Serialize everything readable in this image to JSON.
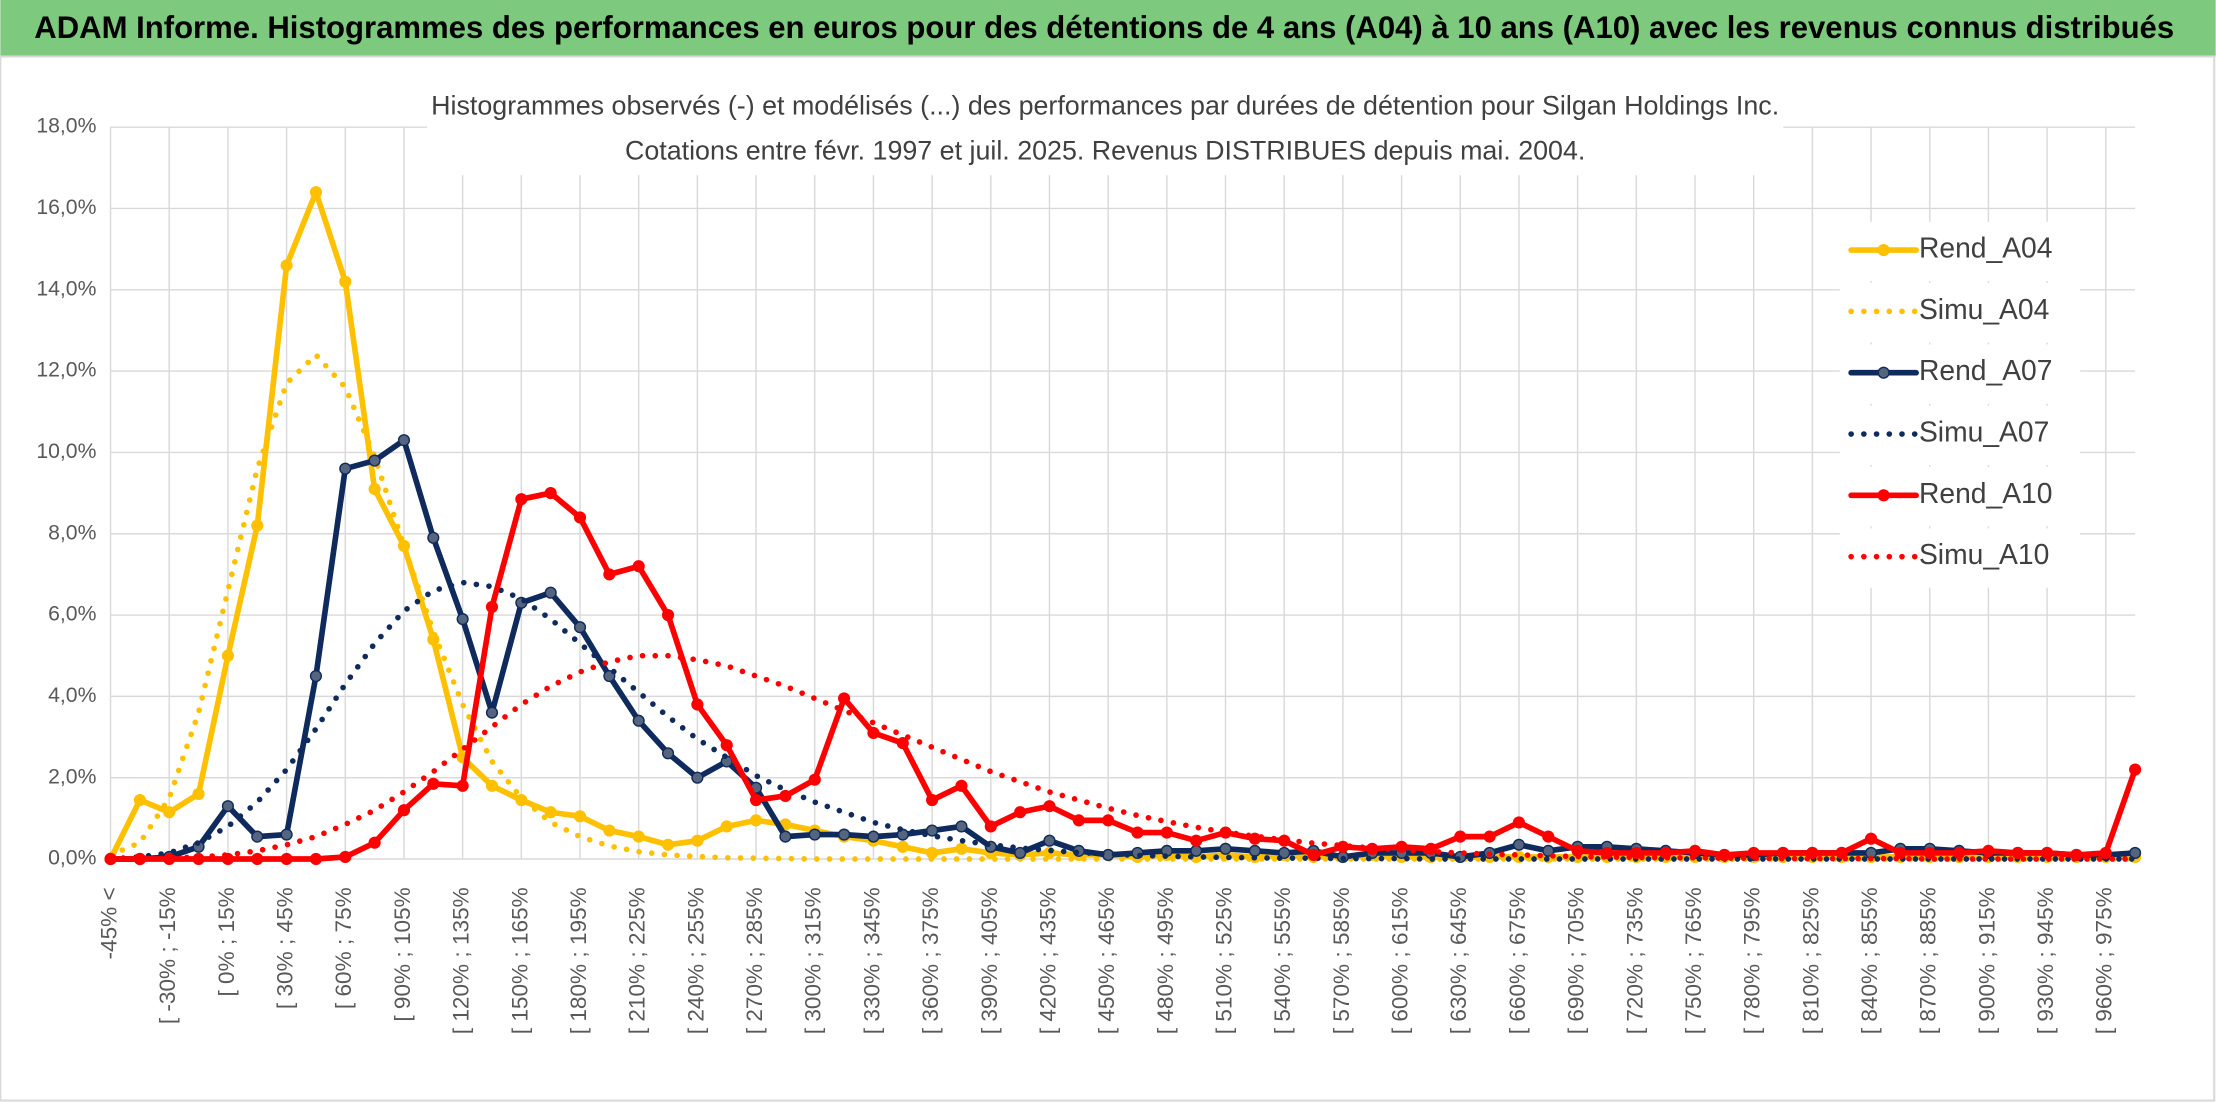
{
  "header": {
    "title": "ADAM Informe. Histogrammes des performances en euros pour des détentions de 4 ans (A04) à 10 ans (A10) avec les revenus connus distribués"
  },
  "chart_data": {
    "type": "line",
    "title": "Histogrammes observés (-) et modélisés (...) des performances par durées de détention pour Silgan Holdings Inc.",
    "subtitle": "Cotations entre févr. 1997 et juil. 2025. Revenus DISTRIBUES depuis mai. 2004.",
    "categories": [
      "-45% <",
      null,
      "[ -30% ; -15%",
      null,
      "[ 0% ; 15%",
      null,
      "[ 30% ; 45%",
      null,
      "[ 60% ; 75%",
      null,
      "[ 90% ; 105%",
      null,
      "[ 120% ; 135%",
      null,
      "[ 150% ; 165%",
      null,
      "[ 180% ; 195%",
      null,
      "[ 210% ; 225%",
      null,
      "[ 240% ; 255%",
      null,
      "[ 270% ; 285%",
      null,
      "[ 300% ; 315%",
      null,
      "[ 330% ; 345%",
      null,
      "[ 360% ; 375%",
      null,
      "[ 390% ; 405%",
      null,
      "[ 420% ; 435%",
      null,
      "[ 450% ; 465%",
      null,
      "[ 480% ; 495%",
      null,
      "[ 510% ; 525%",
      null,
      "[ 540% ; 555%",
      null,
      "[ 570% ; 585%",
      null,
      "[ 600% ; 615%",
      null,
      "[ 630% ; 645%",
      null,
      "[ 660% ; 675%",
      null,
      "[ 690% ; 705%",
      null,
      "[ 720% ; 735%",
      null,
      "[ 750% ; 765%",
      null,
      "[ 780% ; 795%",
      null,
      "[ 810% ; 825%",
      null,
      "[ 840% ; 855%",
      null,
      "[ 870% ; 885%",
      null,
      "[ 900% ; 915%",
      null,
      "[ 930% ; 945%",
      null,
      "[ 960% ; 975%",
      null
    ],
    "series": [
      {
        "name": "Rend_A04",
        "color": "#FFC000",
        "dash": "solid",
        "markers": true,
        "values": [
          0,
          1.45,
          1.15,
          1.6,
          5.0,
          8.2,
          14.6,
          16.4,
          14.2,
          9.1,
          7.7,
          5.4,
          2.5,
          1.8,
          1.45,
          1.15,
          1.05,
          0.7,
          0.55,
          0.35,
          0.45,
          0.8,
          0.95,
          0.85,
          0.7,
          0.55,
          0.45,
          0.3,
          0.15,
          0.25,
          0.15,
          0.1,
          0.15,
          0.1,
          0.1,
          0.05,
          0.1,
          0.05,
          0.1,
          0.05,
          0.1,
          0.05,
          0.05,
          0.1,
          0.05,
          0.05,
          0.05,
          0.05,
          0.05,
          0.05,
          0.05,
          0.05,
          0.05,
          0.05,
          0.05,
          0.05,
          0.05,
          0.05,
          0.05,
          0.05,
          0.05,
          0.05,
          0.05,
          0.05,
          0.05,
          0.05,
          0.05,
          0.05,
          0.05,
          0.05
        ]
      },
      {
        "name": "Simu_A04",
        "color": "#FFC000",
        "dash": "dotted",
        "markers": false,
        "values": [
          0.1,
          0.4,
          1.5,
          3.6,
          6.6,
          9.6,
          11.7,
          12.4,
          11.6,
          9.9,
          7.7,
          5.6,
          3.8,
          2.4,
          1.5,
          0.9,
          0.55,
          0.32,
          0.18,
          0.1,
          0.06,
          0.03,
          0.02,
          0.01,
          0,
          0,
          0,
          0,
          0,
          0,
          0,
          0,
          0,
          0,
          0,
          0,
          0,
          0,
          0,
          0,
          0,
          0,
          0,
          0,
          0,
          0,
          0,
          0,
          0,
          0,
          0,
          0,
          0,
          0,
          0,
          0,
          0,
          0,
          0,
          0,
          0,
          0,
          0,
          0,
          0,
          0,
          0,
          0,
          0,
          0
        ]
      },
      {
        "name": "Rend_A07",
        "color": "#0F2A5C",
        "dash": "solid",
        "markers": true,
        "values": [
          0,
          0,
          0.05,
          0.3,
          1.3,
          0.55,
          0.6,
          4.5,
          9.6,
          9.8,
          10.3,
          7.9,
          5.9,
          3.6,
          6.3,
          6.55,
          5.7,
          4.5,
          3.4,
          2.6,
          2.0,
          2.4,
          1.75,
          0.55,
          0.6,
          0.6,
          0.55,
          0.6,
          0.7,
          0.8,
          0.3,
          0.15,
          0.45,
          0.2,
          0.1,
          0.15,
          0.2,
          0.2,
          0.25,
          0.2,
          0.15,
          0.2,
          0.05,
          0.15,
          0.15,
          0.15,
          0.05,
          0.15,
          0.35,
          0.2,
          0.3,
          0.3,
          0.25,
          0.2,
          0.15,
          0.1,
          0.1,
          0.15,
          0.15,
          0.15,
          0.15,
          0.25,
          0.25,
          0.2,
          0.15,
          0.15,
          0.15,
          0.1,
          0.1,
          0.15
        ]
      },
      {
        "name": "Simu_A07",
        "color": "#0F2A5C",
        "dash": "dotted",
        "markers": false,
        "values": [
          0,
          0.05,
          0.15,
          0.4,
          0.8,
          1.4,
          2.2,
          3.2,
          4.3,
          5.3,
          6.1,
          6.6,
          6.8,
          6.7,
          6.4,
          5.9,
          5.3,
          4.7,
          4.1,
          3.5,
          2.95,
          2.5,
          2.05,
          1.7,
          1.4,
          1.15,
          0.9,
          0.72,
          0.57,
          0.45,
          0.35,
          0.27,
          0.21,
          0.16,
          0.12,
          0.09,
          0.07,
          0.05,
          0.04,
          0.03,
          0.02,
          0.02,
          0.01,
          0.01,
          0.01,
          0,
          0,
          0,
          0,
          0,
          0,
          0,
          0,
          0,
          0,
          0,
          0,
          0,
          0,
          0,
          0,
          0,
          0,
          0,
          0,
          0,
          0,
          0,
          0,
          0
        ]
      },
      {
        "name": "Rend_A10",
        "color": "#FF0000",
        "dash": "solid",
        "markers": true,
        "values": [
          0,
          0,
          0,
          0,
          0,
          0,
          0,
          0,
          0.05,
          0.4,
          1.2,
          1.85,
          1.8,
          6.2,
          8.85,
          9.0,
          8.4,
          7.0,
          7.2,
          6.0,
          3.8,
          2.8,
          1.45,
          1.55,
          1.95,
          3.95,
          3.1,
          2.85,
          1.45,
          1.8,
          0.8,
          1.15,
          1.3,
          0.95,
          0.95,
          0.65,
          0.65,
          0.45,
          0.65,
          0.5,
          0.45,
          0.1,
          0.3,
          0.25,
          0.3,
          0.25,
          0.55,
          0.55,
          0.9,
          0.55,
          0.2,
          0.15,
          0.15,
          0.15,
          0.2,
          0.1,
          0.15,
          0.15,
          0.15,
          0.15,
          0.5,
          0.15,
          0.15,
          0.15,
          0.2,
          0.15,
          0.15,
          0.1,
          0.15,
          2.2
        ]
      },
      {
        "name": "Simu_A10",
        "color": "#FF0000",
        "dash": "dotted",
        "markers": false,
        "values": [
          0,
          0,
          0.02,
          0.05,
          0.1,
          0.2,
          0.35,
          0.55,
          0.85,
          1.2,
          1.65,
          2.15,
          2.7,
          3.25,
          3.8,
          4.25,
          4.6,
          4.85,
          5.0,
          5.0,
          4.9,
          4.75,
          4.5,
          4.25,
          3.95,
          3.65,
          3.35,
          3.05,
          2.75,
          2.45,
          2.15,
          1.9,
          1.65,
          1.45,
          1.25,
          1.07,
          0.92,
          0.78,
          0.66,
          0.56,
          0.47,
          0.39,
          0.33,
          0.27,
          0.22,
          0.18,
          0.15,
          0.12,
          0.1,
          0.08,
          0.06,
          0.05,
          0.04,
          0.03,
          0.03,
          0.02,
          0.02,
          0.01,
          0.01,
          0.01,
          0.01,
          0.01,
          0,
          0,
          0,
          0,
          0,
          0,
          0,
          0
        ]
      }
    ],
    "ylim": [
      0,
      18
    ],
    "yticks": [
      {
        "value": 0,
        "label": "0,0%"
      },
      {
        "value": 2,
        "label": "2,0%"
      },
      {
        "value": 4,
        "label": "4,0%"
      },
      {
        "value": 6,
        "label": "6,0%"
      },
      {
        "value": 8,
        "label": "8,0%"
      },
      {
        "value": 10,
        "label": "10,0%"
      },
      {
        "value": 12,
        "label": "12,0%"
      },
      {
        "value": 14,
        "label": "14,0%"
      },
      {
        "value": 16,
        "label": "16,0%"
      },
      {
        "value": 18,
        "label": "18,0%"
      }
    ],
    "grid": true,
    "legend": "right"
  }
}
